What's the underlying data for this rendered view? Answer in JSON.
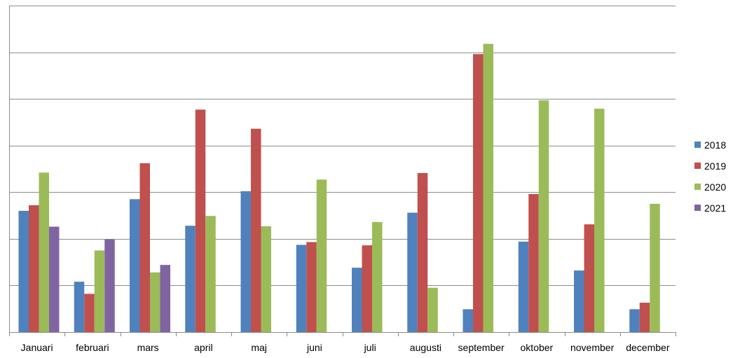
{
  "chart_data": {
    "type": "bar",
    "categories": [
      "Januari",
      "februari",
      "mars",
      "april",
      "maj",
      "juni",
      "juli",
      "augusti",
      "september",
      "oktober",
      "november",
      "december"
    ],
    "series": [
      {
        "name": "2018",
        "color": "#4F81BD",
        "values": [
          26,
          10.8,
          28.5,
          22.8,
          30.2,
          18.7,
          13.8,
          25.6,
          4.9,
          19.4,
          13.2,
          4.9
        ]
      },
      {
        "name": "2019",
        "color": "#C0504D",
        "values": [
          27.2,
          8.2,
          36.2,
          47.7,
          43.6,
          19.3,
          18.6,
          34.1,
          59.6,
          29.6,
          23.1,
          6.3
        ]
      },
      {
        "name": "2020",
        "color": "#9BBB59",
        "values": [
          34.2,
          17.5,
          12.8,
          24.9,
          22.7,
          32.7,
          23.6,
          9.5,
          61.8,
          49.7,
          47.9,
          27.5
        ]
      },
      {
        "name": "2021",
        "color": "#8064A2",
        "values": [
          22.6,
          19.9,
          14.4,
          null,
          null,
          null,
          null,
          null,
          null,
          null,
          null,
          null
        ]
      }
    ],
    "ylim": [
      0,
      70
    ],
    "ytick_step": 10,
    "y_tick_labels_visible": false,
    "grid": true,
    "legend_position": "right"
  }
}
